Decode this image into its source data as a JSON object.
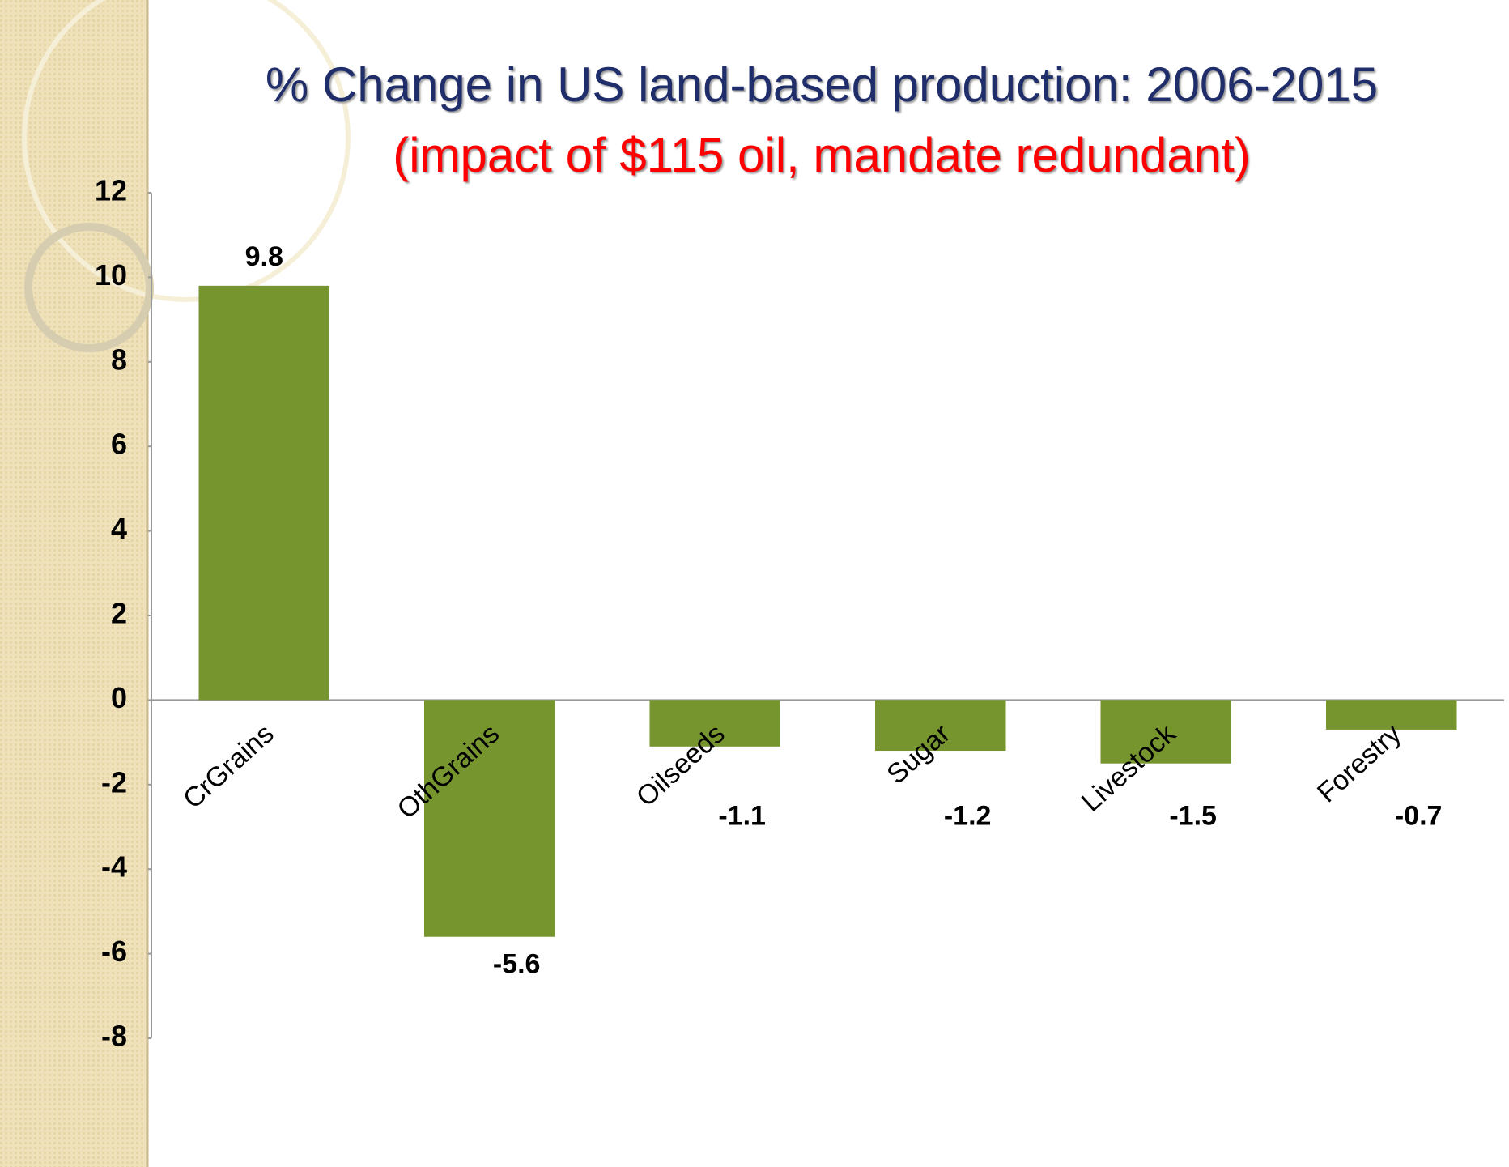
{
  "chart_data": {
    "type": "bar",
    "title": "% Change in US land-based production: 2006-2015",
    "subtitle": "(impact of $115 oil, mandate redundant)",
    "categories": [
      "CrGrains",
      "OthGrains",
      "Oilseeds",
      "Sugar",
      "Livestock",
      "Forestry"
    ],
    "values": [
      9.8,
      -5.6,
      -1.1,
      -1.2,
      -1.5,
      -0.7
    ],
    "color": "#77952f",
    "ylim": [
      -8,
      12
    ],
    "yticks": [
      -8,
      -6,
      -4,
      -2,
      0,
      2,
      4,
      6,
      8,
      10,
      12
    ],
    "grid": false
  }
}
